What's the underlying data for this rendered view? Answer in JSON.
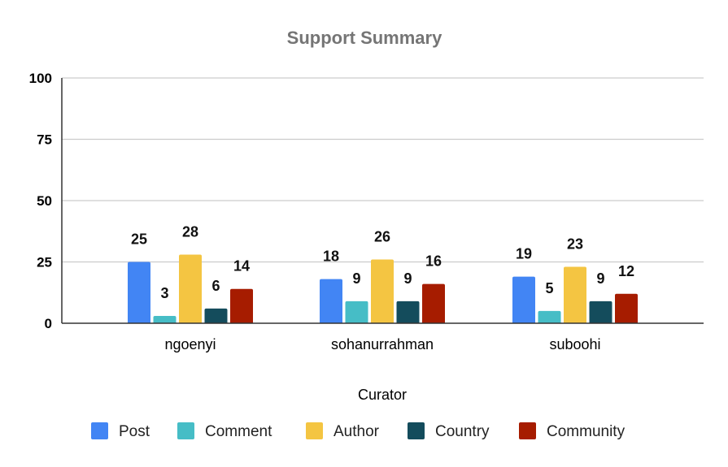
{
  "chart_data": {
    "type": "bar",
    "title": "Support Summary",
    "xlabel": "Curator",
    "ylabel": "",
    "ylim": [
      0,
      100
    ],
    "yticks": [
      0,
      25,
      50,
      75,
      100
    ],
    "grid": true,
    "legend_position": "bottom",
    "categories": [
      "ngoenyi",
      "sohanurrahman",
      "suboohi"
    ],
    "series": [
      {
        "name": "Post",
        "color": "#4285f4",
        "values": [
          25,
          18,
          19
        ]
      },
      {
        "name": "Comment",
        "color": "#46bdc6",
        "values": [
          3,
          9,
          5
        ]
      },
      {
        "name": "Author",
        "color": "#f4c542",
        "values": [
          28,
          26,
          23
        ]
      },
      {
        "name": "Country",
        "color": "#144c5c",
        "values": [
          6,
          9,
          9
        ]
      },
      {
        "name": "Community",
        "color": "#a61c00",
        "values": [
          14,
          16,
          12
        ]
      }
    ]
  }
}
